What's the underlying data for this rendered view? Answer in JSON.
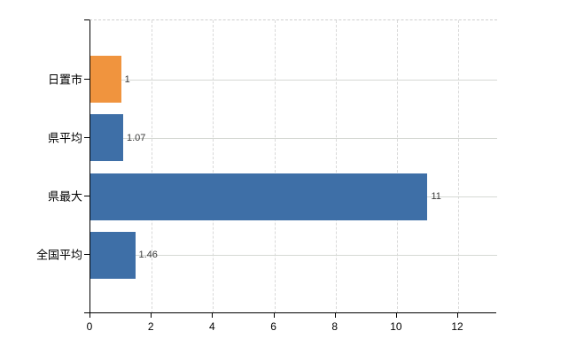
{
  "chart_data": {
    "type": "bar",
    "orientation": "horizontal",
    "title": "",
    "xlabel": "",
    "ylabel": "",
    "categories": [
      "日置市",
      "県平均",
      "県最大",
      "全国平均"
    ],
    "values": [
      1,
      1.07,
      11,
      1.46
    ],
    "value_labels": [
      "1",
      "1.07",
      "11",
      "1.46"
    ],
    "bar_colors": [
      "#f0943e",
      "#3e6fa7",
      "#3e6fa7",
      "#3e6fa7"
    ],
    "x_ticks": [
      0,
      2,
      4,
      6,
      8,
      10,
      12
    ],
    "x_tick_labels": [
      "0",
      "2",
      "4",
      "6",
      "8",
      "10",
      "12"
    ],
    "xlim": [
      0,
      13.27
    ],
    "grid": true,
    "legend": false,
    "colors": {
      "bar_blue": "#3e6fa7",
      "bar_orange": "#f0943e",
      "gridline": "#d9d9d9",
      "axis": "#000000",
      "background": "#ffffff",
      "value_text": "#3a3a3a"
    }
  }
}
